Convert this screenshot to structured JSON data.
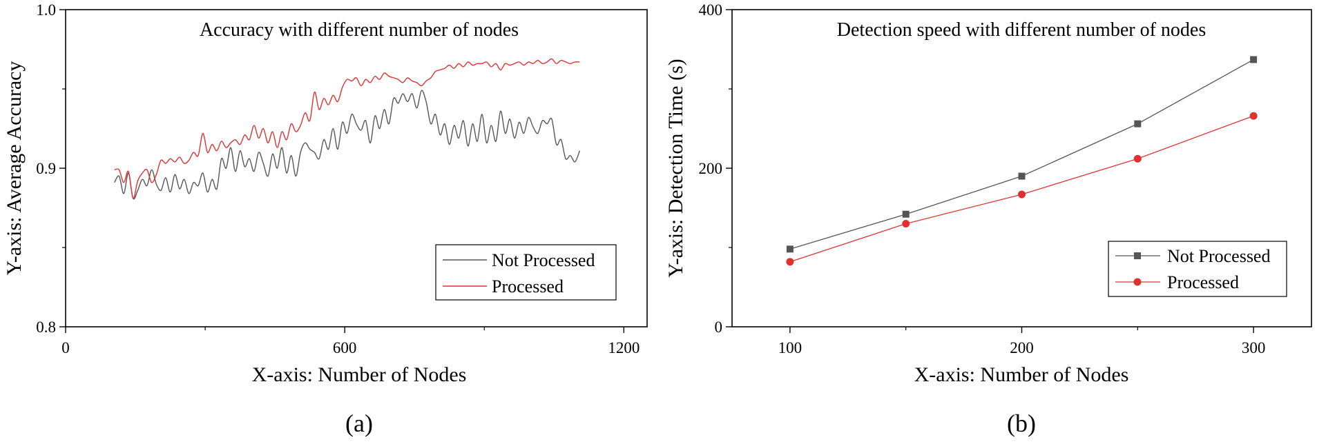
{
  "chart_data": [
    {
      "type": "line",
      "panel_label": "(a)",
      "title": "Accuracy with different number of nodes",
      "xlabel": "X-axis: Number of Nodes",
      "ylabel": "Y-axis: Average Accuracy",
      "xlim": [
        0,
        1250
      ],
      "ylim": [
        0.8,
        1.0
      ],
      "xticks": [
        0,
        600,
        1200
      ],
      "xtick_labels": [
        "0",
        "600",
        "1200"
      ],
      "yticks": [
        0.8,
        0.9,
        1.0
      ],
      "ytick_labels": [
        "0.8",
        "0.9",
        "1.0"
      ],
      "legend": {
        "position": "lower-right",
        "entries": [
          "Not Processed",
          "Processed"
        ]
      },
      "series": [
        {
          "name": "Not Processed",
          "color": "#555555",
          "marker": "none",
          "x": [
            105,
            115,
            125,
            135,
            145,
            155,
            165,
            175,
            185,
            195,
            205,
            215,
            225,
            235,
            245,
            255,
            265,
            275,
            285,
            295,
            305,
            315,
            325,
            335,
            345,
            355,
            365,
            375,
            385,
            395,
            405,
            415,
            425,
            435,
            445,
            455,
            465,
            475,
            485,
            495,
            505,
            515,
            525,
            535,
            545,
            555,
            565,
            575,
            585,
            595,
            605,
            615,
            625,
            635,
            645,
            655,
            665,
            675,
            685,
            695,
            705,
            715,
            725,
            735,
            745,
            755,
            765,
            775,
            785,
            795,
            805,
            815,
            825,
            835,
            845,
            855,
            865,
            875,
            885,
            895,
            905,
            915,
            925,
            935,
            945,
            955,
            965,
            975,
            985,
            995,
            1005,
            1015,
            1025,
            1035,
            1045,
            1055,
            1065,
            1075,
            1085,
            1095,
            1105
          ],
          "values": [
            0.891,
            0.895,
            0.884,
            0.897,
            0.881,
            0.886,
            0.893,
            0.889,
            0.899,
            0.89,
            0.886,
            0.894,
            0.885,
            0.896,
            0.887,
            0.893,
            0.884,
            0.891,
            0.889,
            0.897,
            0.885,
            0.893,
            0.887,
            0.906,
            0.9,
            0.913,
            0.898,
            0.911,
            0.901,
            0.906,
            0.898,
            0.91,
            0.903,
            0.895,
            0.909,
            0.9,
            0.913,
            0.897,
            0.908,
            0.895,
            0.91,
            0.916,
            0.912,
            0.91,
            0.906,
            0.918,
            0.912,
            0.925,
            0.912,
            0.929,
            0.922,
            0.934,
            0.928,
            0.924,
            0.93,
            0.916,
            0.933,
            0.925,
            0.937,
            0.928,
            0.944,
            0.941,
            0.947,
            0.942,
            0.947,
            0.938,
            0.949,
            0.942,
            0.928,
            0.934,
            0.921,
            0.928,
            0.915,
            0.927,
            0.919,
            0.93,
            0.914,
            0.928,
            0.917,
            0.934,
            0.916,
            0.927,
            0.917,
            0.936,
            0.922,
            0.931,
            0.919,
            0.929,
            0.922,
            0.932,
            0.926,
            0.922,
            0.93,
            0.928,
            0.931,
            0.915,
            0.918,
            0.906,
            0.908,
            0.904,
            0.911
          ]
        },
        {
          "name": "Processed",
          "color": "#e03030",
          "marker": "none",
          "x": [
            105,
            115,
            125,
            135,
            145,
            155,
            165,
            175,
            185,
            195,
            205,
            215,
            225,
            235,
            245,
            255,
            265,
            275,
            285,
            295,
            305,
            315,
            325,
            335,
            345,
            355,
            365,
            375,
            385,
            395,
            405,
            415,
            425,
            435,
            445,
            455,
            465,
            475,
            485,
            495,
            505,
            515,
            525,
            535,
            545,
            555,
            565,
            575,
            585,
            595,
            605,
            615,
            625,
            635,
            645,
            655,
            665,
            675,
            685,
            695,
            705,
            715,
            725,
            735,
            745,
            755,
            765,
            775,
            785,
            795,
            805,
            815,
            825,
            835,
            845,
            855,
            865,
            875,
            885,
            895,
            905,
            915,
            925,
            935,
            945,
            955,
            965,
            975,
            985,
            995,
            1005,
            1015,
            1025,
            1035,
            1045,
            1055,
            1065,
            1075,
            1085,
            1095,
            1105
          ],
          "values": [
            0.899,
            0.899,
            0.891,
            0.898,
            0.881,
            0.892,
            0.897,
            0.899,
            0.891,
            0.896,
            0.905,
            0.903,
            0.906,
            0.904,
            0.907,
            0.903,
            0.905,
            0.91,
            0.908,
            0.922,
            0.91,
            0.915,
            0.911,
            0.917,
            0.913,
            0.916,
            0.918,
            0.915,
            0.921,
            0.918,
            0.927,
            0.919,
            0.925,
            0.916,
            0.923,
            0.913,
            0.923,
            0.918,
            0.928,
            0.923,
            0.927,
            0.935,
            0.93,
            0.948,
            0.937,
            0.944,
            0.94,
            0.946,
            0.942,
            0.951,
            0.956,
            0.955,
            0.957,
            0.952,
            0.956,
            0.954,
            0.958,
            0.956,
            0.96,
            0.958,
            0.957,
            0.956,
            0.954,
            0.957,
            0.955,
            0.954,
            0.952,
            0.955,
            0.957,
            0.961,
            0.962,
            0.963,
            0.965,
            0.963,
            0.966,
            0.964,
            0.967,
            0.965,
            0.966,
            0.966,
            0.967,
            0.964,
            0.966,
            0.962,
            0.966,
            0.965,
            0.966,
            0.967,
            0.965,
            0.967,
            0.966,
            0.968,
            0.966,
            0.967,
            0.969,
            0.966,
            0.968,
            0.967,
            0.966,
            0.967,
            0.967
          ]
        }
      ]
    },
    {
      "type": "line",
      "panel_label": "(b)",
      "title": "Detection speed with different number of nodes",
      "xlabel": "X-axis: Number of Nodes",
      "ylabel": "Y-axis: Detection Time (s)",
      "xlim": [
        75,
        325
      ],
      "ylim": [
        0,
        400
      ],
      "xticks": [
        100,
        200,
        300
      ],
      "xtick_labels": [
        "100",
        "200",
        "300"
      ],
      "yticks": [
        0,
        200,
        400
      ],
      "ytick_labels": [
        "0",
        "200",
        "400"
      ],
      "legend": {
        "position": "lower-right",
        "entries": [
          "Not Processed",
          "Processed"
        ]
      },
      "series": [
        {
          "name": "Not Processed",
          "color": "#555555",
          "marker": "square",
          "x": [
            100,
            150,
            200,
            250,
            300
          ],
          "values": [
            98,
            142,
            190,
            256,
            337
          ]
        },
        {
          "name": "Processed",
          "color": "#e03030",
          "marker": "circle",
          "x": [
            100,
            150,
            200,
            250,
            300
          ],
          "values": [
            82,
            130,
            167,
            212,
            266
          ]
        }
      ]
    }
  ]
}
